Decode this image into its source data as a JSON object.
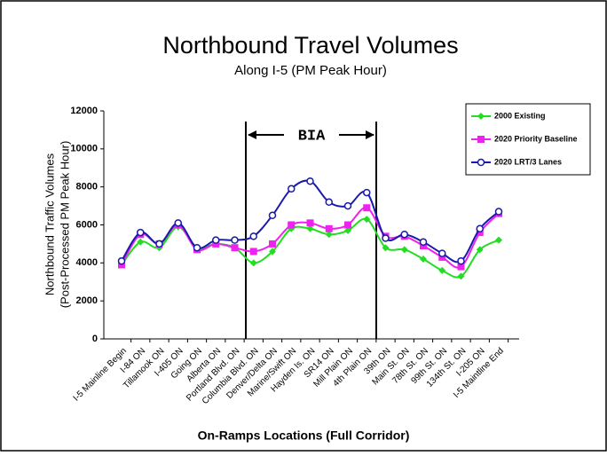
{
  "chart_data": {
    "type": "line",
    "title": "Northbound Travel Volumes",
    "subtitle": "Along I-5 (PM Peak Hour)",
    "y_label": [
      "Northbound Traffic Volumes",
      "(Post-Processed PM Peak Hour)"
    ],
    "x_label": "On-Ramps Locations (Full Corridor)",
    "annotation": "BIA",
    "categories": [
      "I-5 Mainline Begin",
      "I-84 ON",
      "Tillamook ON",
      "I-405 ON",
      "Going ON",
      "Alberta ON",
      "Portland Blvd. ON",
      "Columbia Blvd. ON",
      "Denver/Delta ON",
      "Marine/Swift ON",
      "Hayden Is. ON",
      "SR14 ON",
      "Mill Plain ON",
      "4th Plain ON",
      "39th ON",
      "Main St. ON",
      "78th St. ON",
      "99th St. ON",
      "134th St. ON",
      "I-205 ON",
      "I-5 Maintline End"
    ],
    "series": [
      {
        "name": "2000 Existing",
        "color": "#22dd22",
        "marker": "diamond",
        "values": [
          3900,
          5100,
          4800,
          5900,
          4800,
          5000,
          4800,
          4000,
          4600,
          5800,
          5800,
          5500,
          5700,
          6300,
          4800,
          4700,
          4200,
          3600,
          3300,
          4700,
          5200
        ]
      },
      {
        "name": "2020 Priority Baseline",
        "color": "#ee22ee",
        "marker": "square",
        "values": [
          3900,
          5500,
          5000,
          6000,
          4700,
          5000,
          4800,
          4600,
          5000,
          6000,
          6100,
          5800,
          6000,
          6900,
          5400,
          5400,
          4900,
          4300,
          3800,
          5600,
          6600
        ]
      },
      {
        "name": "2020 LRT/3 Lanes",
        "color": "#1a1aaa",
        "marker": "circle",
        "values": [
          4100,
          5600,
          5000,
          6100,
          4800,
          5200,
          5200,
          5400,
          6500,
          7900,
          8300,
          7200,
          7000,
          7700,
          5300,
          5500,
          5100,
          4500,
          4100,
          5800,
          6700
        ]
      }
    ],
    "ylim": [
      0,
      12000
    ],
    "yticks": [
      0,
      2000,
      4000,
      6000,
      8000,
      10000,
      12000
    ],
    "legend": "upper right"
  }
}
